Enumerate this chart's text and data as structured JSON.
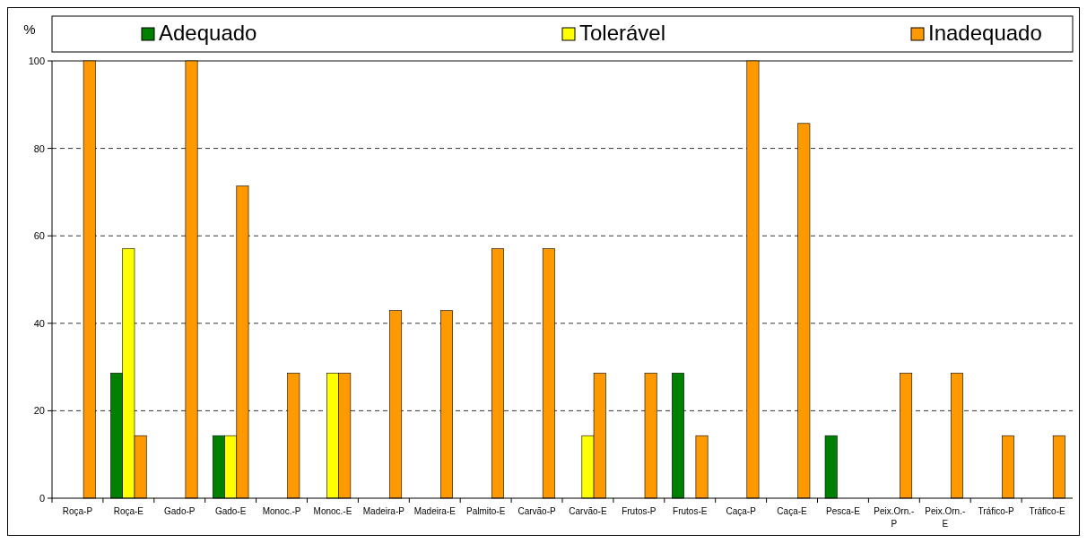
{
  "chart_data": {
    "type": "bar",
    "ylabel": "%",
    "categories": [
      "Roça-P",
      "Roça-E",
      "Gado-P",
      "Gado-E",
      "Monoc.-P",
      "Monoc.-E",
      "Madeira-P",
      "Madeira-E",
      "Palmito-E",
      "Carvão-P",
      "Carvão-E",
      "Frutos-P",
      "Frutos-E",
      "Caça-P",
      "Caça-E",
      "Pesca-E",
      "Peix.Orn.-P",
      "Peix.Orn.-E",
      "Tráfico-P",
      "Tráfico-E"
    ],
    "series": [
      {
        "name": "Adequado",
        "color": "#008000",
        "values": [
          null,
          28.6,
          null,
          14.3,
          null,
          null,
          null,
          null,
          null,
          null,
          null,
          null,
          28.6,
          null,
          null,
          14.3,
          null,
          null,
          null,
          null
        ]
      },
      {
        "name": "Tolerável",
        "color": "#ffff00",
        "values": [
          null,
          57.1,
          null,
          14.3,
          null,
          28.6,
          null,
          null,
          null,
          null,
          14.3,
          null,
          null,
          null,
          null,
          null,
          null,
          null,
          null,
          null
        ]
      },
      {
        "name": "Inadequado",
        "color": "#ff9900",
        "values": [
          100,
          14.3,
          100,
          71.4,
          28.6,
          28.6,
          42.9,
          42.9,
          57.1,
          57.1,
          28.6,
          28.6,
          14.3,
          100,
          85.7,
          null,
          28.6,
          28.6,
          14.3,
          14.3
        ]
      }
    ],
    "ylim": [
      0,
      100
    ],
    "yticks": [
      0,
      20,
      40,
      60,
      80,
      100
    ],
    "grid": "y",
    "legend": "top"
  }
}
